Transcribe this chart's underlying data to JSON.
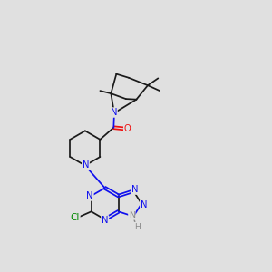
{
  "bg": "#e0e0e0",
  "bond_color": "#1a1a1a",
  "N_color": "#1010ee",
  "O_color": "#ee1010",
  "Cl_color": "#008800",
  "H_color": "#888888",
  "lw": 1.25,
  "fs": 7.2,
  "dbo": 0.048,
  "xlim": [
    0,
    10
  ],
  "ylim": [
    0,
    10
  ]
}
